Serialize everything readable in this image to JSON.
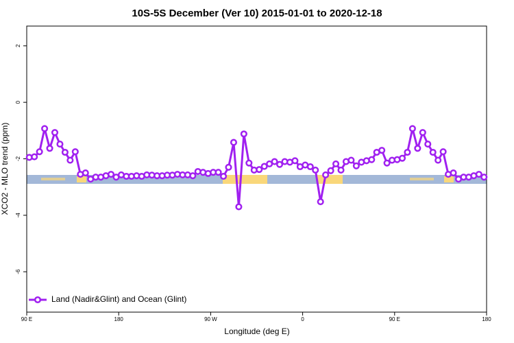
{
  "chart_data": {
    "type": "line",
    "title": "10S-5S December (Ver 10)   2015-01-01 to 2020-12-18",
    "xlabel": "Longitude (deg E)",
    "ylabel": "XCO2 - MLO trend (ppm)",
    "xlim": [
      90,
      540
    ],
    "ylim": [
      -7.43,
      2.7
    ],
    "xticks": [
      {
        "value": 90,
        "label": "90 E"
      },
      {
        "value": 180,
        "label": "180"
      },
      {
        "value": 270,
        "label": "90 W"
      },
      {
        "value": 360,
        "label": "0"
      },
      {
        "value": 450,
        "label": "90 E"
      },
      {
        "value": 540,
        "label": "180"
      }
    ],
    "yticks": [
      2,
      0,
      -2,
      -4,
      -6
    ],
    "legend": "bottom-left",
    "x": [
      92.5,
      97.5,
      102.5,
      107.5,
      112.5,
      117.5,
      122.5,
      127.5,
      132.5,
      137.5,
      142.5,
      147.5,
      152.5,
      157.5,
      162.5,
      167.5,
      172.5,
      177.5,
      182.5,
      187.5,
      192.5,
      197.5,
      202.5,
      207.5,
      212.5,
      217.5,
      222.5,
      227.5,
      232.5,
      237.5,
      242.5,
      247.5,
      252.5,
      257.5,
      262.5,
      267.5,
      272.5,
      277.5,
      282.5,
      287.5,
      292.5,
      297.5,
      302.5,
      307.5,
      312.5,
      317.5,
      322.5,
      327.5,
      332.5,
      337.5,
      342.5,
      347.5,
      352.5,
      357.5,
      362.5,
      367.5,
      372.5,
      377.5,
      382.5,
      387.5,
      392.5,
      397.5,
      402.5,
      407.5,
      412.5,
      417.5,
      422.5,
      427.5,
      432.5,
      437.5,
      442.5,
      447.5,
      452.5,
      457.5,
      462.5,
      467.5,
      472.5,
      477.5,
      482.5,
      487.5,
      492.5,
      497.5,
      502.5,
      507.5,
      512.5,
      517.5,
      522.5,
      527.5,
      532.5,
      537.5
    ],
    "series": [
      {
        "name": "Land (Nadir&Glint) and Ocean (Glint)",
        "color": "#a020f0",
        "values": [
          -1.95,
          -1.93,
          -1.75,
          -0.93,
          -1.63,
          -1.07,
          -1.48,
          -1.77,
          -2.05,
          -1.75,
          -2.55,
          -2.5,
          -2.72,
          -2.65,
          -2.65,
          -2.6,
          -2.55,
          -2.65,
          -2.57,
          -2.62,
          -2.62,
          -2.6,
          -2.62,
          -2.57,
          -2.58,
          -2.6,
          -2.6,
          -2.58,
          -2.58,
          -2.55,
          -2.57,
          -2.57,
          -2.6,
          -2.45,
          -2.48,
          -2.52,
          -2.48,
          -2.48,
          -2.62,
          -2.3,
          -1.42,
          -3.7,
          -1.12,
          -2.15,
          -2.4,
          -2.38,
          -2.27,
          -2.18,
          -2.1,
          -2.2,
          -2.1,
          -2.12,
          -2.07,
          -2.28,
          -2.22,
          -2.28,
          -2.4,
          -3.52,
          -2.57,
          -2.42,
          -2.18,
          -2.4,
          -2.1,
          -2.05,
          -2.25,
          -2.12,
          -2.07,
          -2.03,
          -1.77,
          -1.7,
          -2.15,
          -2.05,
          -2.03,
          -1.98,
          -1.77,
          -0.93,
          -1.63,
          -1.07,
          -1.48,
          -1.77,
          -2.05,
          -1.75,
          -2.55,
          -2.5,
          -2.72,
          -2.65,
          -2.65,
          -2.6,
          -2.55,
          -2.65
        ]
      }
    ]
  }
}
